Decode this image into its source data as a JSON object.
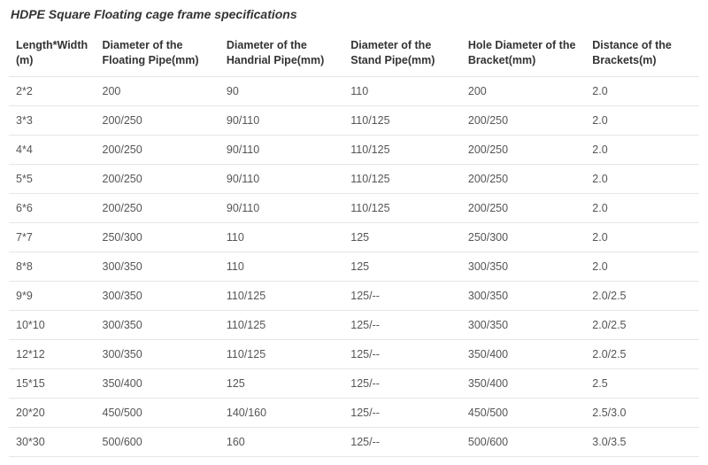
{
  "title": "HDPE Square Floating cage frame specifications",
  "table": {
    "columns": [
      "Length*Width(m)",
      "Diameter of the Floating Pipe(mm)",
      "Diameter of the Handrial Pipe(mm)",
      "Diameter of the Stand Pipe(mm)",
      "Hole Diameter of the Bracket(mm)",
      "Distance of the Brackets(m)"
    ],
    "rows": [
      [
        "2*2",
        "200",
        "90",
        "110",
        "200",
        "2.0"
      ],
      [
        "3*3",
        "200/250",
        "90/110",
        "110/125",
        "200/250",
        "2.0"
      ],
      [
        "4*4",
        "200/250",
        "90/110",
        "110/125",
        "200/250",
        "2.0"
      ],
      [
        "5*5",
        "200/250",
        "90/110",
        "110/125",
        "200/250",
        "2.0"
      ],
      [
        "6*6",
        "200/250",
        "90/110",
        "110/125",
        "200/250",
        "2.0"
      ],
      [
        "7*7",
        "250/300",
        "110",
        "125",
        "250/300",
        "2.0"
      ],
      [
        "8*8",
        "300/350",
        "110",
        "125",
        "300/350",
        "2.0"
      ],
      [
        "9*9",
        "300/350",
        "110/125",
        "125/--",
        "300/350",
        "2.0/2.5"
      ],
      [
        "10*10",
        "300/350",
        "110/125",
        "125/--",
        "300/350",
        "2.0/2.5"
      ],
      [
        "12*12",
        "300/350",
        "110/125",
        "125/--",
        "350/400",
        "2.0/2.5"
      ],
      [
        "15*15",
        "350/400",
        "125",
        "125/--",
        "350/400",
        "2.5"
      ],
      [
        "20*20",
        "450/500",
        "140/160",
        "125/--",
        "450/500",
        "2.5/3.0"
      ],
      [
        "30*30",
        "500/600",
        "160",
        "125/--",
        "500/600",
        "3.0/3.5"
      ]
    ],
    "header_bg": "#ffffff",
    "row_bg": "#ffffff",
    "border_color": "#e6e6e6",
    "text_color": "#555555",
    "header_text_color": "#333333",
    "font_size": 12.5,
    "header_font_size": 12.5,
    "col_widths_pct": [
      12.5,
      18,
      18,
      17,
      18,
      16.5
    ]
  }
}
